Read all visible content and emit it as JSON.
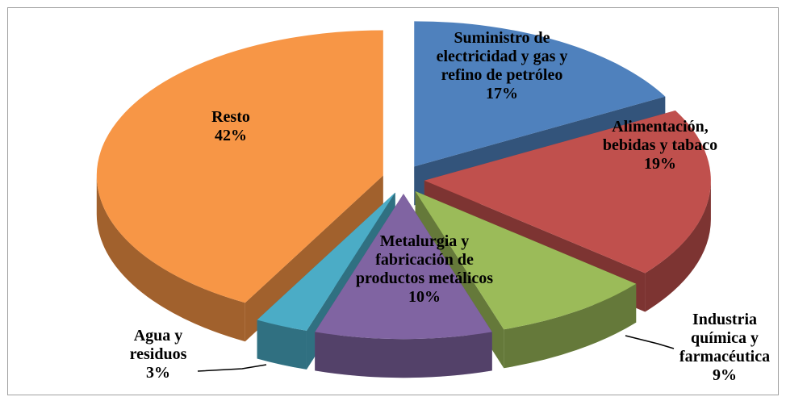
{
  "chart_data": {
    "type": "pie3d",
    "categories": [
      "Suministro de electricidad y gas y refino de petróleo",
      "Alimentación, bebidas y tabaco",
      "Industria química y farmacéutica",
      "Metalurgia y fabricación de productos metálicos",
      "Agua y residuos",
      "Resto"
    ],
    "values": [
      17,
      19,
      9,
      10,
      3,
      42
    ],
    "value_labels": [
      "17%",
      "19%",
      "9%",
      "10%",
      "3%",
      "42%"
    ],
    "colors": [
      "#4f81bd",
      "#c0504d",
      "#9bbb59",
      "#8064a2",
      "#4bacc6",
      "#f79646"
    ]
  }
}
